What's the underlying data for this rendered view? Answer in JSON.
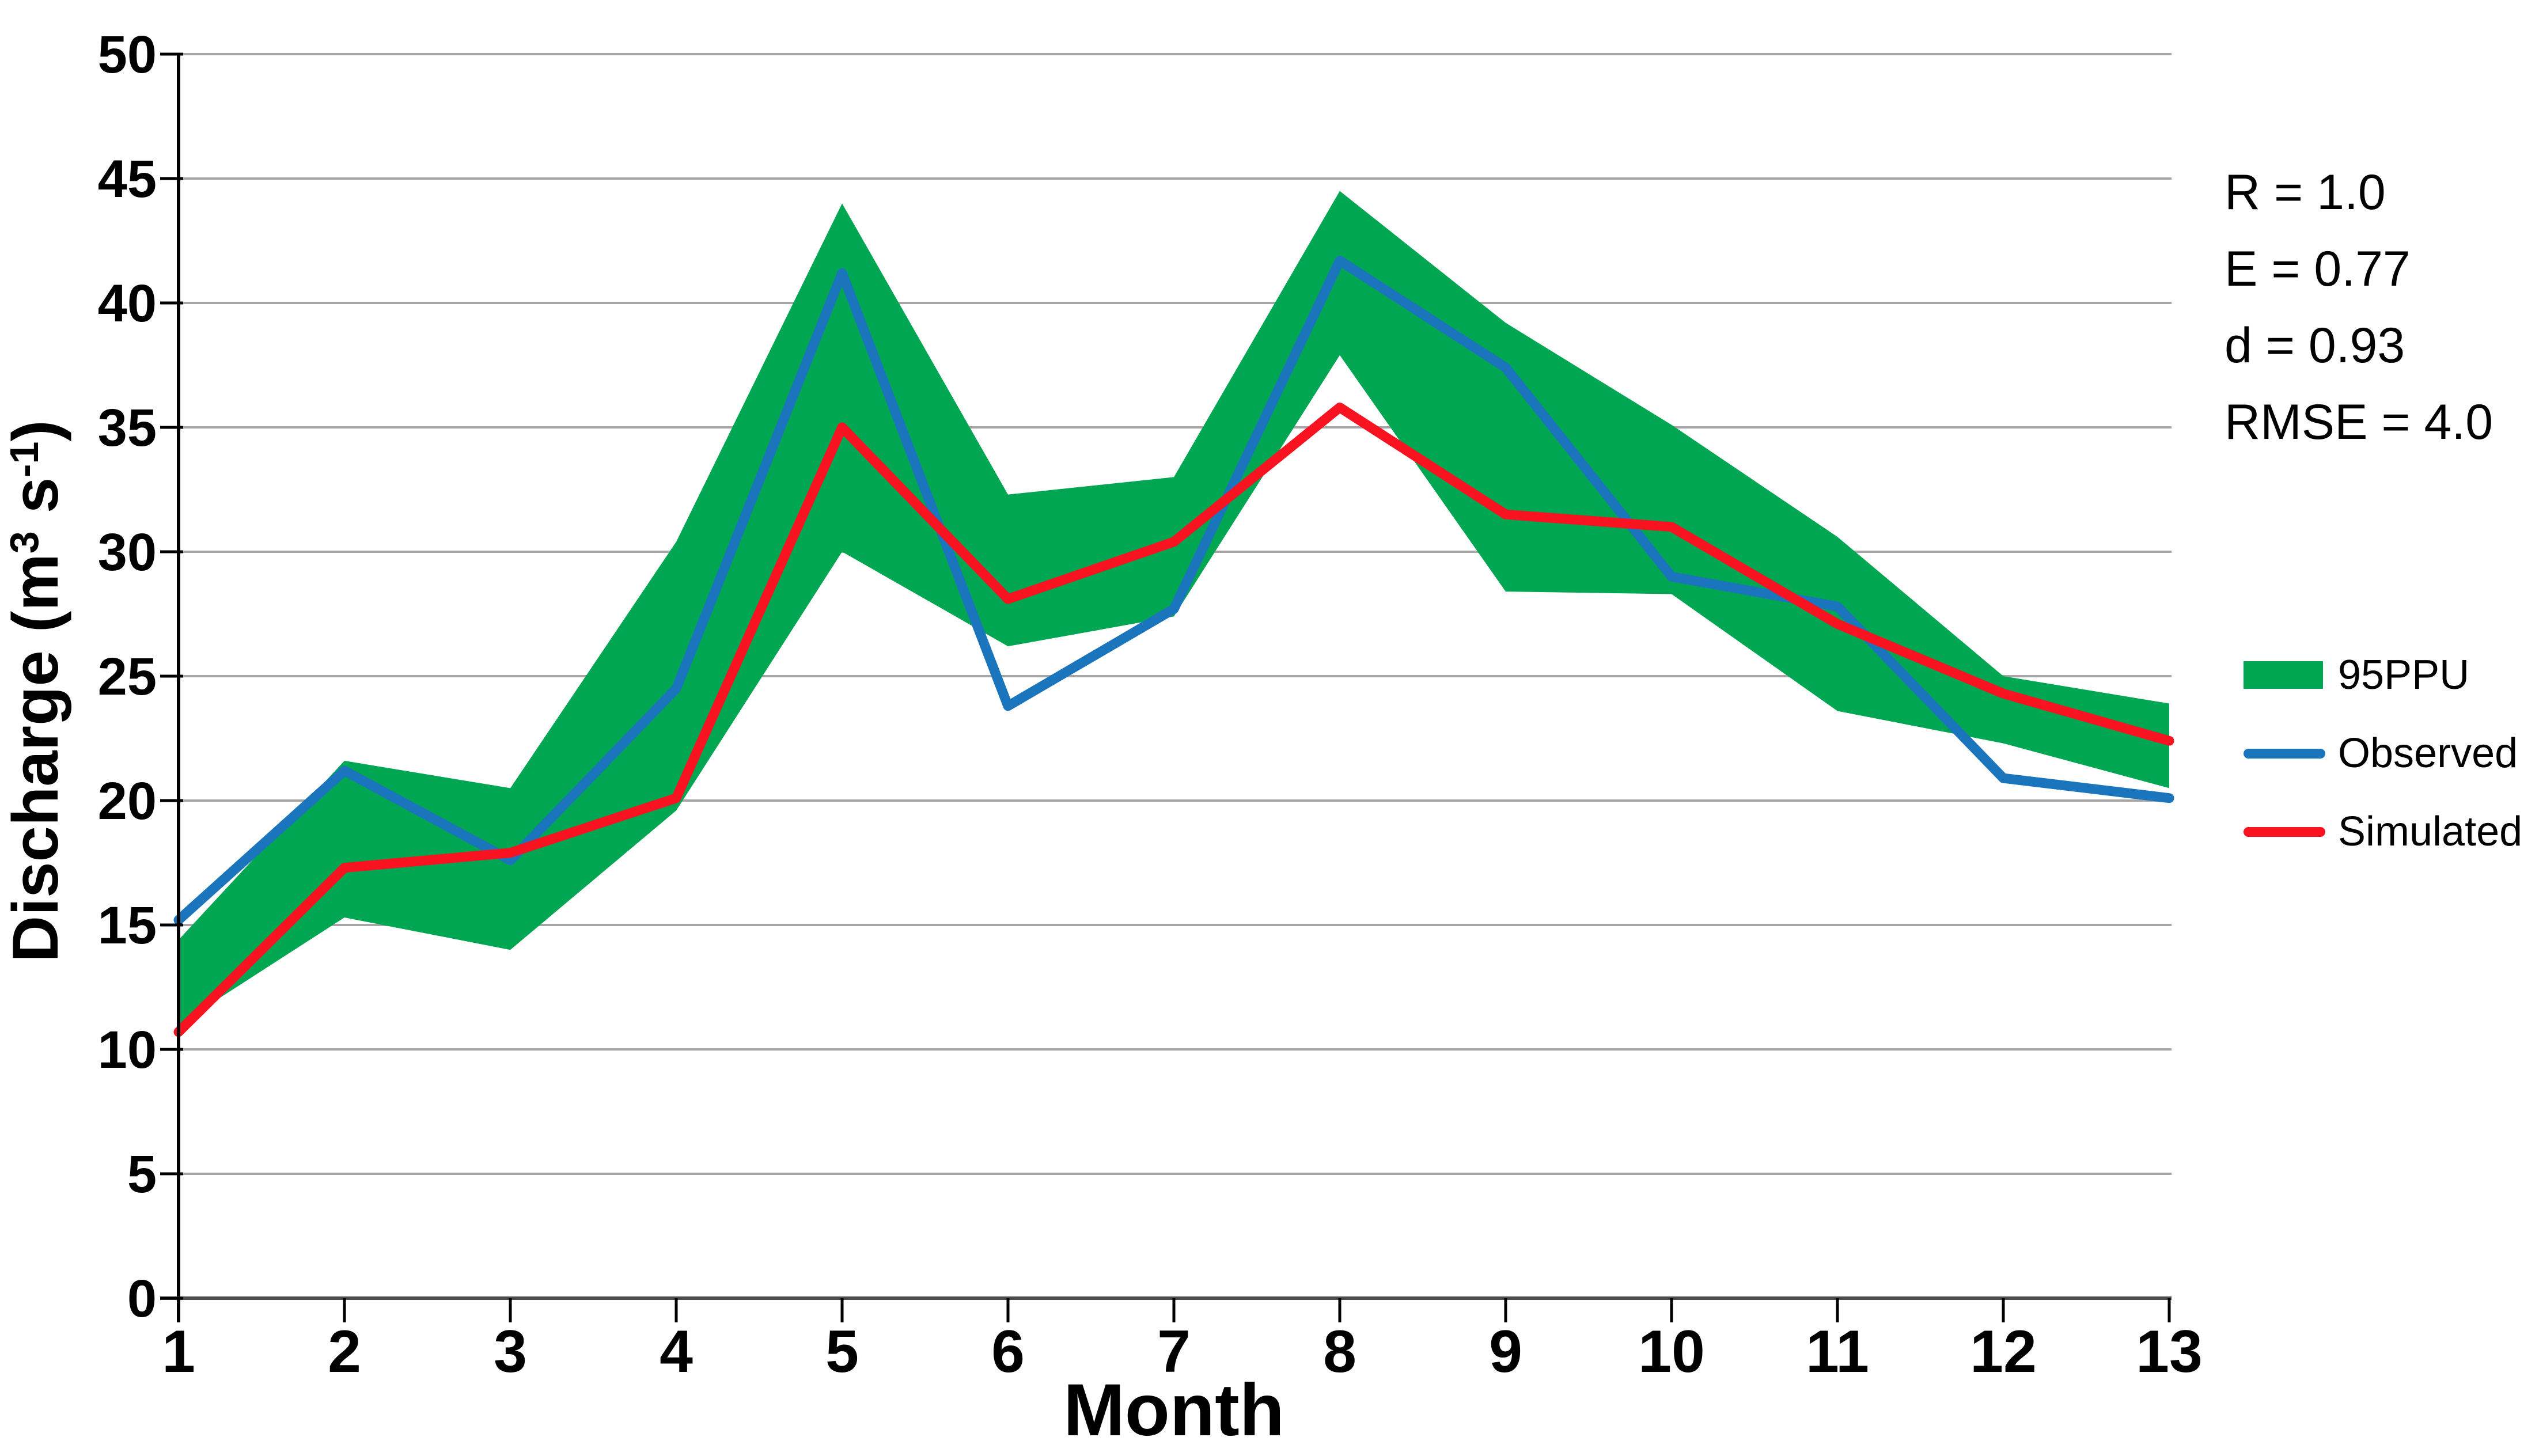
{
  "stats_panel": {
    "lines": [
      "R = 1.0",
      "E = 0.77",
      "d = 0.93",
      "RMSE = 4.0"
    ]
  },
  "legend": {
    "items": [
      {
        "label": "95PPU",
        "swatch": "band",
        "color": "#00A651"
      },
      {
        "label": "Observed",
        "swatch": "line",
        "color": "#1B75BC"
      },
      {
        "label": "Simulated",
        "swatch": "line",
        "color": "#F9121F"
      }
    ]
  },
  "chart_data": {
    "type": "line",
    "title": "",
    "xlabel": "Month",
    "ylabel": "Discharge (m³ s⁻¹)",
    "ylabel_parts": [
      {
        "text": "Discharge (m",
        "sup": false
      },
      {
        "text": "3",
        "sup": true
      },
      {
        "text": " s",
        "sup": false
      },
      {
        "text": "-1",
        "sup": true
      },
      {
        "text": ")",
        "sup": false
      }
    ],
    "x": [
      1,
      2,
      3,
      4,
      5,
      6,
      7,
      8,
      9,
      10,
      11,
      12,
      13
    ],
    "xticks": [
      1,
      2,
      3,
      4,
      5,
      6,
      7,
      8,
      9,
      10,
      11,
      12,
      13
    ],
    "yticks": [
      0,
      5,
      10,
      15,
      20,
      25,
      30,
      35,
      40,
      45,
      50
    ],
    "xlim": [
      1,
      13
    ],
    "ylim": [
      0,
      50
    ],
    "grid": true,
    "legend_position": "right",
    "band": {
      "name": "95PPU",
      "color": "#00A651",
      "upper": [
        14.4,
        21.6,
        20.5,
        30.4,
        44.0,
        32.3,
        33.0,
        44.5,
        39.2,
        35.1,
        30.6,
        25.0,
        23.9
      ],
      "lower": [
        11.0,
        15.3,
        14.0,
        19.6,
        30.0,
        26.2,
        27.4,
        37.9,
        28.4,
        28.3,
        23.6,
        22.3,
        20.5
      ]
    },
    "series": [
      {
        "name": "Observed",
        "color": "#1B75BC",
        "values": [
          15.2,
          21.2,
          17.6,
          24.5,
          41.2,
          23.8,
          27.7,
          41.7,
          37.4,
          29.0,
          27.8,
          20.9,
          20.1
        ]
      },
      {
        "name": "Simulated",
        "color": "#F9121F",
        "values": [
          10.7,
          17.3,
          17.9,
          20.1,
          35.0,
          28.1,
          30.4,
          35.8,
          31.5,
          31.0,
          27.1,
          24.3,
          22.4
        ]
      }
    ]
  },
  "colors": {
    "grid": "#A6A6A6",
    "x_axis": "#4D4D4D",
    "y_axis": "#000000",
    "tick": "#000000",
    "text": "#000000",
    "background": "#FFFFFF"
  }
}
